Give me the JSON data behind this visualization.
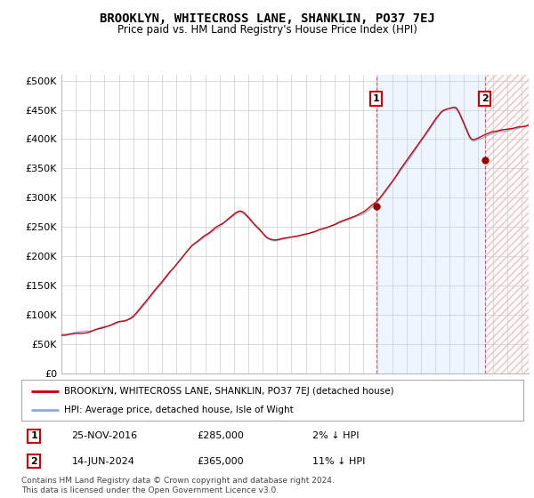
{
  "title": "BROOKLYN, WHITECROSS LANE, SHANKLIN, PO37 7EJ",
  "subtitle": "Price paid vs. HM Land Registry's House Price Index (HPI)",
  "yticks": [
    0,
    50000,
    100000,
    150000,
    200000,
    250000,
    300000,
    350000,
    400000,
    450000,
    500000
  ],
  "ytick_labels": [
    "£0",
    "£50K",
    "£100K",
    "£150K",
    "£200K",
    "£250K",
    "£300K",
    "£350K",
    "£400K",
    "£450K",
    "£500K"
  ],
  "xlim_start": 1995.0,
  "xlim_end": 2027.5,
  "ylim_min": 0,
  "ylim_max": 510000,
  "hpi_color": "#88aadd",
  "price_color": "#cc0000",
  "sale1_date": 2016.9,
  "sale1_price": 285000,
  "sale2_date": 2024.45,
  "sale2_price": 365000,
  "legend1": "BROOKLYN, WHITECROSS LANE, SHANKLIN, PO37 7EJ (detached house)",
  "legend2": "HPI: Average price, detached house, Isle of Wight",
  "note1_label": "1",
  "note1_date": "25-NOV-2016",
  "note1_price": "£285,000",
  "note1_hpi": "2% ↓ HPI",
  "note2_label": "2",
  "note2_date": "14-JUN-2024",
  "note2_price": "£365,000",
  "note2_hpi": "11% ↓ HPI",
  "footer": "Contains HM Land Registry data © Crown copyright and database right 2024.\nThis data is licensed under the Open Government Licence v3.0.",
  "bg_color": "#ffffff",
  "grid_color": "#cccccc",
  "plot_bg": "#ffffff",
  "fill_color": "#ddeeff",
  "hatch_fill": "#ffeeee"
}
